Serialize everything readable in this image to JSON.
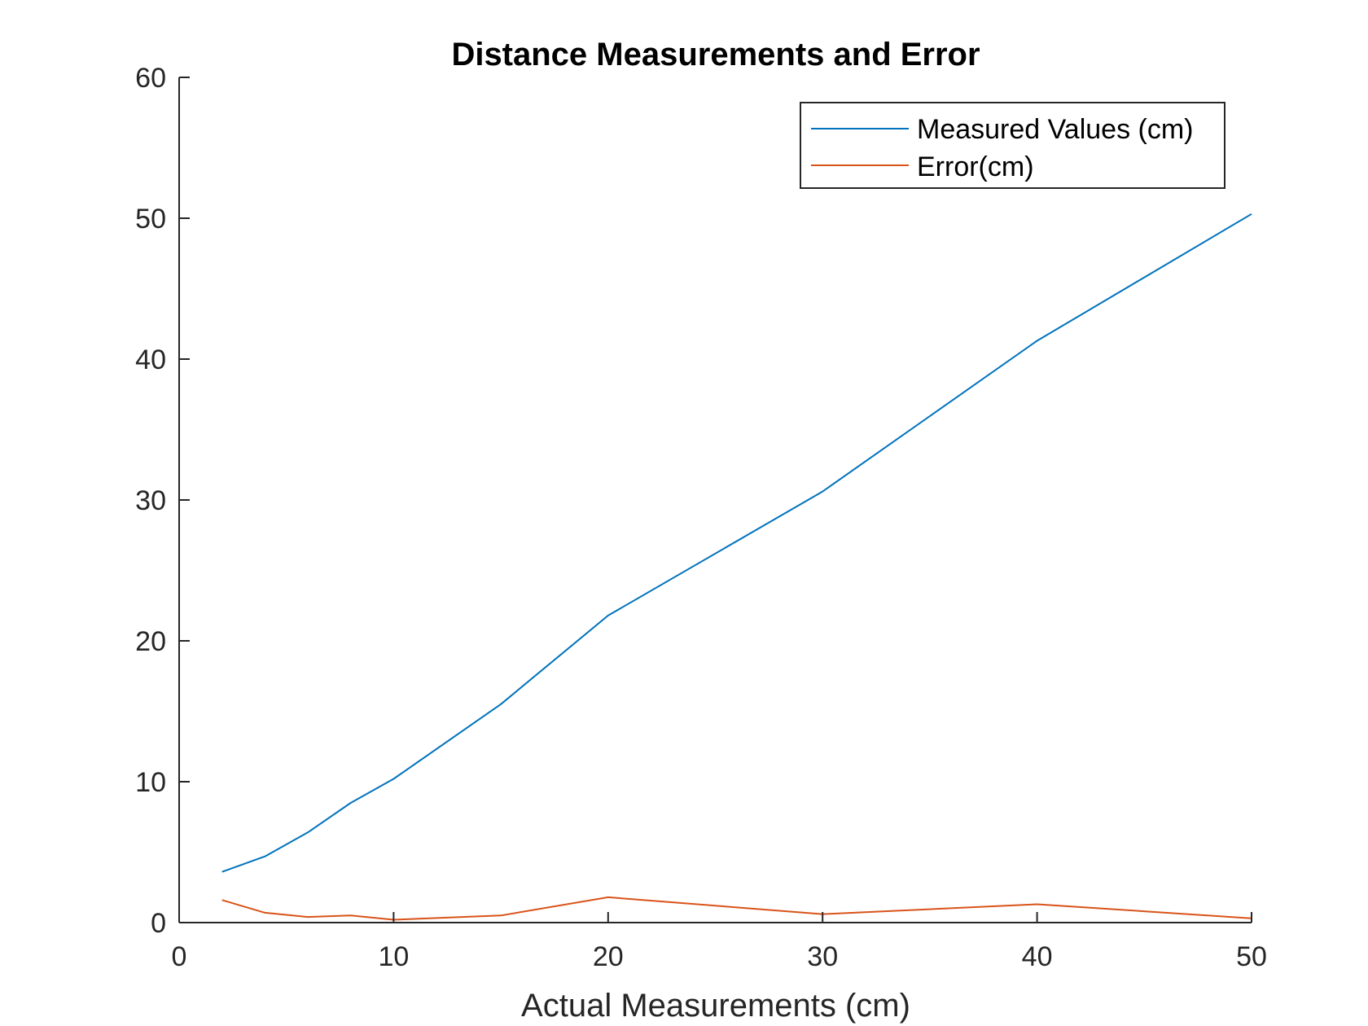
{
  "chart_data": {
    "type": "line",
    "title": "Distance Measurements and Error",
    "xlabel": "Actual Measurements (cm)",
    "ylabel": "",
    "xlim": [
      0,
      50
    ],
    "ylim": [
      0,
      60
    ],
    "xticks": [
      "0",
      "10",
      "20",
      "30",
      "40",
      "50"
    ],
    "yticks": [
      "0",
      "10",
      "20",
      "30",
      "40",
      "50",
      "60"
    ],
    "grid": false,
    "legend_position": "top-right",
    "x": [
      2,
      4,
      6,
      8,
      10,
      15,
      20,
      30,
      40,
      50
    ],
    "series": [
      {
        "name": "Measured Values (cm)",
        "color": "#0072BD",
        "values": [
          3.6,
          4.7,
          6.4,
          8.5,
          10.2,
          15.5,
          21.8,
          30.6,
          41.3,
          50.3
        ]
      },
      {
        "name": "Error(cm)",
        "color": "#D95319",
        "values": [
          1.6,
          0.7,
          0.4,
          0.5,
          0.2,
          0.5,
          1.8,
          0.6,
          1.3,
          0.3
        ]
      }
    ]
  }
}
